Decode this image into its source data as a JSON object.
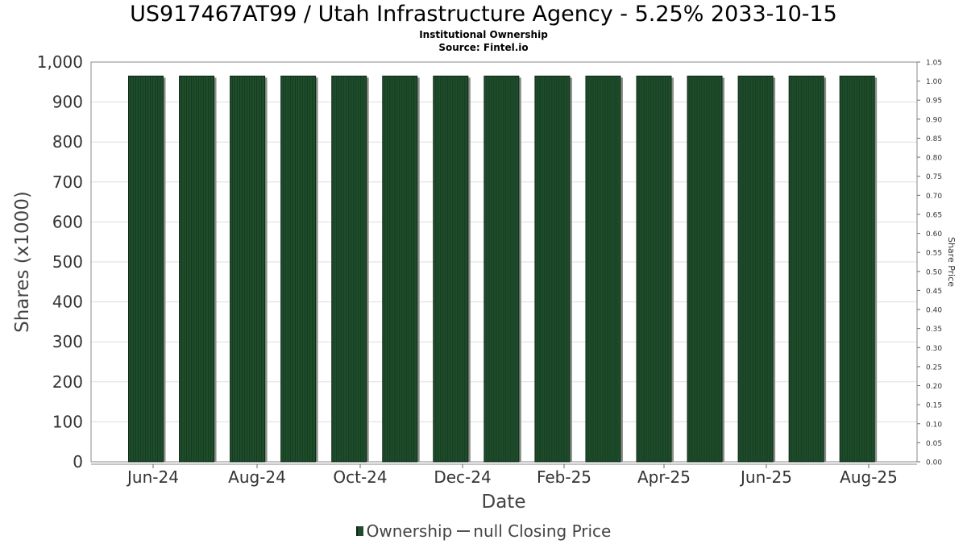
{
  "title": "US917467AT99 / Utah Infrastructure Agency - 5.25% 2033-10-15",
  "subtitle": "Institutional Ownership",
  "source": "Source: Fintel.io",
  "legend": {
    "ownership": "Ownership",
    "price": "null Closing Price"
  },
  "colors": {
    "bar": "#1e4d2b",
    "bar_dark": "#0d2614",
    "bar_shadow": "#8a8f8a",
    "grid": "#dddddd"
  },
  "chart_data": {
    "type": "bar",
    "title": "US917467AT99 / Utah Infrastructure Agency - 5.25% 2033-10-15",
    "xlabel": "Date",
    "ylabel": "Shares (x1000)",
    "y2label": "Share Price",
    "x_ticks": [
      "Jun-24",
      "Aug-24",
      "Oct-24",
      "Dec-24",
      "Feb-25",
      "Apr-25",
      "Jun-25",
      "Aug-25"
    ],
    "ylim": [
      0,
      1000
    ],
    "y_ticks": [
      "0",
      "100",
      "200",
      "300",
      "400",
      "500",
      "600",
      "700",
      "800",
      "900",
      "1,000"
    ],
    "y2lim": [
      0,
      1.05
    ],
    "y2_ticks": [
      "0.00",
      "0.05",
      "0.10",
      "0.15",
      "0.20",
      "0.25",
      "0.30",
      "0.35",
      "0.40",
      "0.45",
      "0.50",
      "0.55",
      "0.60",
      "0.65",
      "0.70",
      "0.75",
      "0.80",
      "0.85",
      "0.90",
      "0.95",
      "1.00",
      "1.05"
    ],
    "grid": true,
    "legend_position": "bottom",
    "series": [
      {
        "name": "Ownership",
        "values": [
          965,
          965,
          965,
          965,
          965,
          965,
          965,
          965,
          965,
          965,
          965,
          965,
          965,
          965,
          965
        ]
      },
      {
        "name": "null Closing Price",
        "values": []
      }
    ]
  }
}
